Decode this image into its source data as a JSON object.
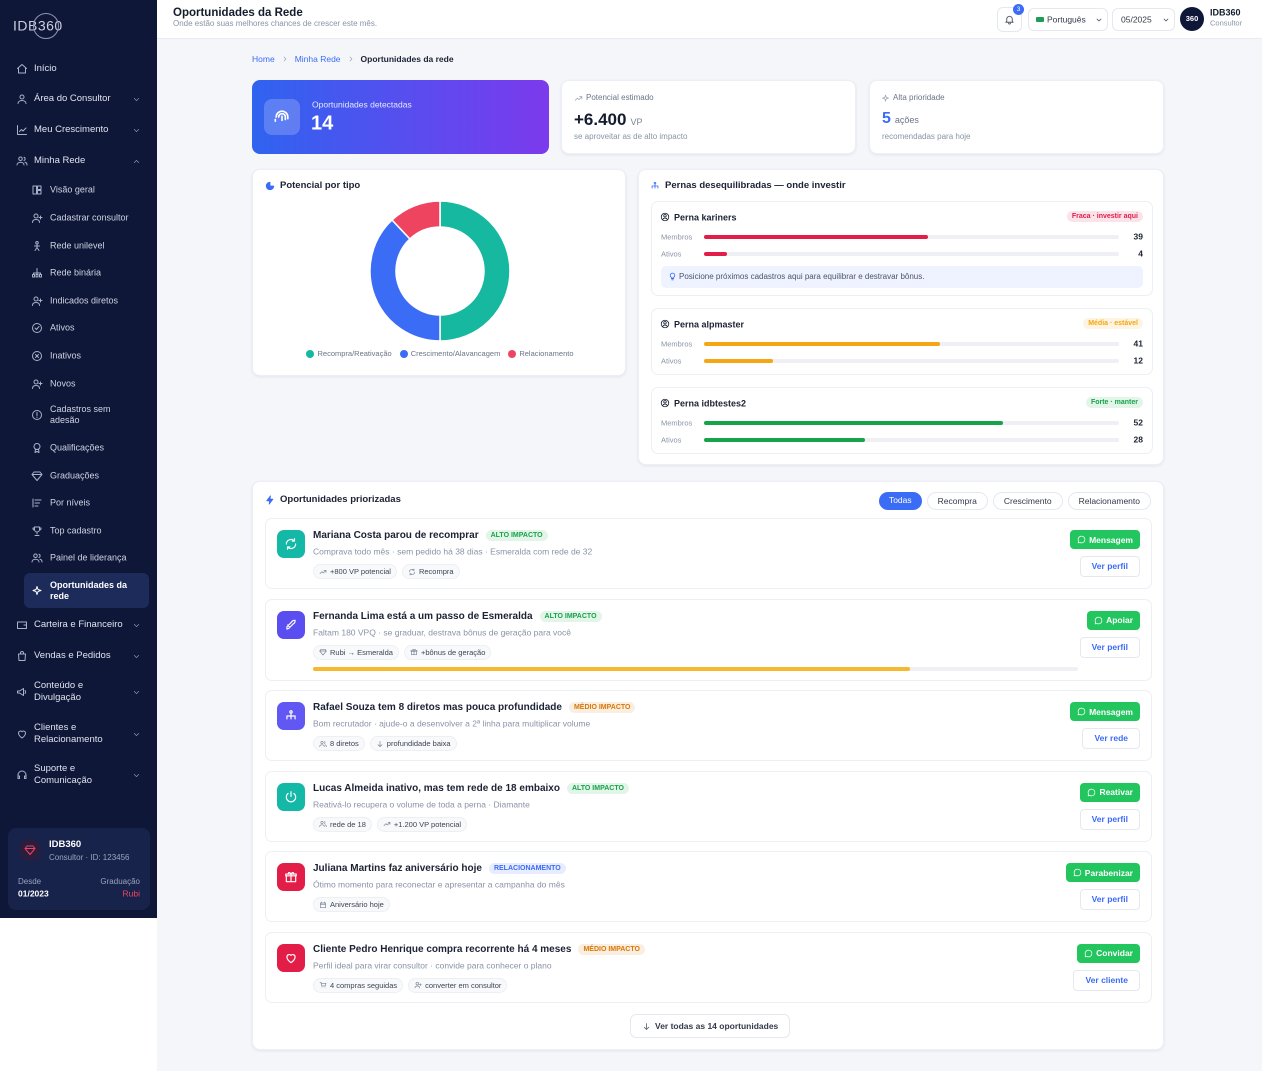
{
  "sidebar": {
    "logo": "IDB360",
    "menu": [
      "Início",
      "Área do Consultor",
      "Meu Crescimento",
      "Minha Rede"
    ],
    "submenu": [
      "Visão geral",
      "Cadastrar consultor",
      "Rede unilevel",
      "Rede binária",
      "Indicados diretos",
      "Ativos",
      "Inativos",
      "Novos",
      "Cadastros sem adesão",
      "Qualificações",
      "Graduações",
      "Por níveis",
      "Top cadastro",
      "Painel de liderança",
      "Oportunidades da rede"
    ],
    "active_submenu": 14,
    "menu_more": [
      "Carteira e Financeiro",
      "Vendas e Pedidos",
      "Conteúdo e Divulgação",
      "Clientes e Relacionamento",
      "Suporte e Comunicação"
    ],
    "profile": {
      "name": "IDB360",
      "id": "Consultor · ID: 123456",
      "since_label": "Desde",
      "since": "01/2023",
      "grade_label": "Graduação",
      "grade": "Rubi"
    }
  },
  "header": {
    "title": "Oportunidades da Rede",
    "subtitle": "Onde estão suas melhores chances de crescer este mês.",
    "notifications": 3,
    "language": "Português",
    "period": "05/2025",
    "avatar": "360",
    "user": "IDB360",
    "role": "Consultor"
  },
  "breadcrumb": [
    "Home",
    "Minha Rede",
    "Oportunidades da rede"
  ],
  "stats": {
    "detected": {
      "label": "Oportunidades detectadas",
      "value": 14
    },
    "potential": {
      "label": "Potencial estimado",
      "value": "+6.400",
      "unit": "VP",
      "note": "se aproveitar as de alto impacto"
    },
    "priority": {
      "label": "Alta prioridade",
      "value": 5,
      "unit": "ações",
      "note": "recomendadas para hoje"
    }
  },
  "chart_data": {
    "type": "donut",
    "title": "Potencial por tipo",
    "categories": [
      "Recompra/Reativação",
      "Crescimento/Alavancagem",
      "Relacionamento"
    ],
    "values": [
      50,
      38,
      12
    ],
    "colors": [
      "#17b8a0",
      "#3b6cf6",
      "#ef4460"
    ]
  },
  "legs": {
    "title": "Pernas desequilibradas — onde investir",
    "members_label": "Membros",
    "active_label": "Ativos",
    "items": [
      {
        "name": "Perna kariners",
        "status": "Fraca · investir aqui",
        "members": 39,
        "active": 4,
        "color": "#e11d48",
        "tip": "Posicione próximos cadastros aqui para equilibrar e destravar bônus."
      },
      {
        "name": "Perna alpmaster",
        "status": "Média · estável",
        "members": 41,
        "active": 12,
        "color": "#f5a612"
      },
      {
        "name": "Perna idbtestes2",
        "status": "Forte · manter",
        "members": 52,
        "active": 28,
        "color": "#16a34a"
      }
    ]
  },
  "opportunities": {
    "title": "Oportunidades priorizadas",
    "filters": [
      "Todas",
      "Recompra",
      "Crescimento",
      "Relacionamento"
    ],
    "active_filter": 0,
    "items": [
      {
        "title": "Mariana Costa parou de recomprar",
        "badge": "ALTO IMPACTO",
        "badge_color": "#16a34a",
        "desc": "Comprava todo mês · sem pedido há 38 dias · Esmeralda com rede de 32",
        "tags": [
          "+800 VP potencial",
          "Recompra"
        ],
        "action": "Mensagem",
        "link": "Ver perfil",
        "icon_color": "#14b8a6"
      },
      {
        "title": "Fernanda Lima está a um passo de Esmeralda",
        "badge": "ALTO IMPACTO",
        "badge_color": "#16a34a",
        "desc": "Faltam 180 VPQ · se graduar, destrava bônus de geração para você",
        "tags": [
          "Rubi → Esmeralda",
          "+bônus de geração"
        ],
        "action": "Apoiar",
        "link": "Ver perfil",
        "icon_color": "#5b4ef0",
        "progress": 78
      },
      {
        "title": "Rafael Souza tem 8 diretos mas pouca profundidade",
        "badge": "MÉDIO IMPACTO",
        "badge_color": "#d97706",
        "desc": "Bom recrutador · ajude-o a desenvolver a 2ª linha para multiplicar volume",
        "tags": [
          "8 diretos",
          "profundidade baixa"
        ],
        "action": "Mensagem",
        "link": "Ver rede",
        "icon_color": "#6157f2"
      },
      {
        "title": "Lucas Almeida inativo, mas tem rede de 18 embaixo",
        "badge": "ALTO IMPACTO",
        "badge_color": "#16a34a",
        "desc": "Reativá-lo recupera o volume de toda a perna · Diamante",
        "tags": [
          "rede de 18",
          "+1.200 VP potencial"
        ],
        "action": "Reativar",
        "link": "Ver perfil",
        "icon_color": "#14b8a6"
      },
      {
        "title": "Juliana Martins faz aniversário hoje",
        "badge": "RELACIONAMENTO",
        "badge_color": "#3b6cf6",
        "desc": "Ótimo momento para reconectar e apresentar a campanha do mês",
        "tags": [
          "Aniversário hoje"
        ],
        "action": "Parabenizar",
        "link": "Ver perfil",
        "icon_color": "#e11d48"
      },
      {
        "title": "Cliente Pedro Henrique compra recorrente há 4 meses",
        "badge": "MÉDIO IMPACTO",
        "badge_color": "#d97706",
        "desc": "Perfil ideal para virar consultor · convide para conhecer o plano",
        "tags": [
          "4 compras seguidas",
          "converter em consultor"
        ],
        "action": "Convidar",
        "link": "Ver cliente",
        "icon_color": "#e11d48"
      }
    ],
    "progress_max": 100,
    "more": "Ver todas as 14 oportunidades"
  }
}
